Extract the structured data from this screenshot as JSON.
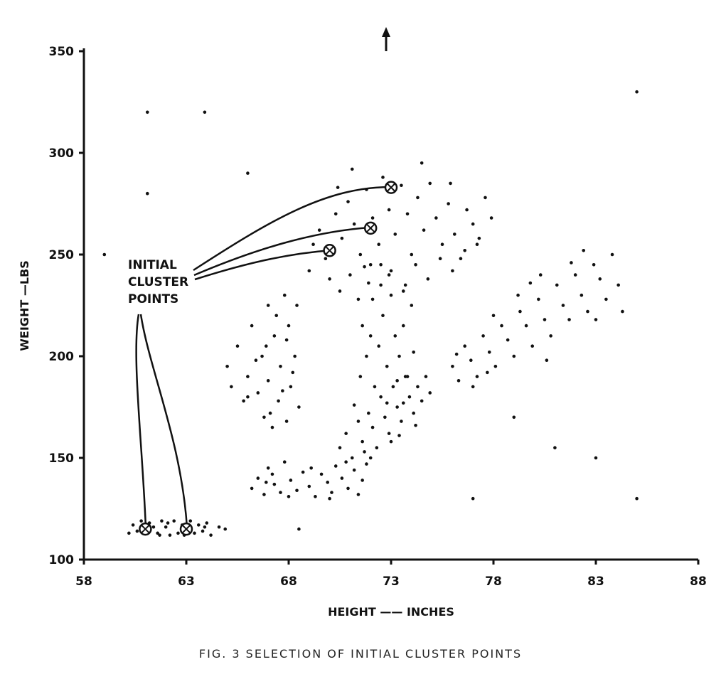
{
  "caption": "FIG. 3  SELECTION OF INITIAL CLUSTER POINTS",
  "annotation": [
    "INITIAL",
    "CLUSTER",
    "POINTS"
  ],
  "chart_data": {
    "type": "scatter",
    "title": "",
    "xlabel": "HEIGHT —— INCHES",
    "ylabel": "WEIGHT —LBS",
    "xlim": [
      58,
      88
    ],
    "ylim": [
      100,
      350
    ],
    "xticks": [
      58,
      63,
      68,
      73,
      78,
      83,
      88
    ],
    "yticks": [
      100,
      150,
      200,
      250,
      300,
      350
    ],
    "grid": false,
    "initial_cluster_points": [
      [
        61,
        115
      ],
      [
        63,
        115
      ],
      [
        70,
        252
      ],
      [
        72,
        263
      ],
      [
        73,
        283
      ]
    ],
    "offscale_marker_x": 73,
    "points": [
      [
        60.4,
        117
      ],
      [
        60.6,
        114
      ],
      [
        60.8,
        119
      ],
      [
        61.0,
        113
      ],
      [
        61.2,
        118
      ],
      [
        61.4,
        116
      ],
      [
        61.6,
        113
      ],
      [
        61.8,
        119
      ],
      [
        62.0,
        116
      ],
      [
        62.2,
        112
      ],
      [
        62.4,
        119
      ],
      [
        62.6,
        113
      ],
      [
        62.8,
        117
      ],
      [
        63.2,
        119
      ],
      [
        63.4,
        113
      ],
      [
        63.6,
        117
      ],
      [
        63.8,
        114
      ],
      [
        64.0,
        118
      ],
      [
        64.2,
        112
      ],
      [
        64.6,
        116
      ],
      [
        60.2,
        113
      ],
      [
        61.7,
        112
      ],
      [
        62.9,
        112
      ],
      [
        63.9,
        116
      ],
      [
        64.9,
        115
      ],
      [
        60.9,
        116
      ],
      [
        62.1,
        118
      ],
      [
        61.1,
        320
      ],
      [
        61.1,
        280
      ],
      [
        63.9,
        320
      ],
      [
        59.0,
        250
      ],
      [
        66.0,
        290
      ],
      [
        68.5,
        115
      ],
      [
        79.0,
        170
      ],
      [
        81.0,
        155
      ],
      [
        83.0,
        150
      ],
      [
        85.0,
        130
      ],
      [
        77.0,
        130
      ],
      [
        85.0,
        330
      ],
      [
        65.0,
        195
      ],
      [
        65.2,
        185
      ],
      [
        65.5,
        205
      ],
      [
        65.8,
        178
      ],
      [
        66.0,
        190
      ],
      [
        66.2,
        215
      ],
      [
        66.5,
        182
      ],
      [
        66.7,
        200
      ],
      [
        66.8,
        170
      ],
      [
        67.0,
        225
      ],
      [
        67.0,
        188
      ],
      [
        67.2,
        165
      ],
      [
        67.3,
        210
      ],
      [
        67.5,
        178
      ],
      [
        67.6,
        195
      ],
      [
        67.8,
        230
      ],
      [
        67.9,
        168
      ],
      [
        68.0,
        215
      ],
      [
        68.1,
        185
      ],
      [
        68.3,
        200
      ],
      [
        68.4,
        225
      ],
      [
        68.5,
        175
      ],
      [
        67.4,
        220
      ],
      [
        66.9,
        205
      ],
      [
        67.7,
        183
      ],
      [
        68.2,
        192
      ],
      [
        66.4,
        198
      ],
      [
        67.1,
        172
      ],
      [
        67.9,
        208
      ],
      [
        66.0,
        180
      ],
      [
        66.2,
        135
      ],
      [
        66.5,
        140
      ],
      [
        66.8,
        132
      ],
      [
        67.0,
        145
      ],
      [
        67.3,
        137
      ],
      [
        67.6,
        133
      ],
      [
        67.8,
        148
      ],
      [
        68.1,
        139
      ],
      [
        68.4,
        134
      ],
      [
        68.7,
        143
      ],
      [
        69.0,
        136
      ],
      [
        69.3,
        131
      ],
      [
        69.6,
        142
      ],
      [
        69.9,
        138
      ],
      [
        70.1,
        133
      ],
      [
        70.3,
        146
      ],
      [
        70.6,
        140
      ],
      [
        70.9,
        135
      ],
      [
        71.2,
        144
      ],
      [
        71.4,
        132
      ],
      [
        71.6,
        139
      ],
      [
        71.8,
        147
      ],
      [
        66.9,
        138
      ],
      [
        68.0,
        131
      ],
      [
        69.1,
        145
      ],
      [
        70.0,
        130
      ],
      [
        67.2,
        142
      ],
      [
        70.8,
        148
      ],
      [
        70.5,
        155
      ],
      [
        70.8,
        162
      ],
      [
        71.1,
        150
      ],
      [
        71.4,
        168
      ],
      [
        71.6,
        158
      ],
      [
        71.9,
        172
      ],
      [
        72.1,
        165
      ],
      [
        72.3,
        155
      ],
      [
        72.5,
        180
      ],
      [
        72.7,
        170
      ],
      [
        72.9,
        162
      ],
      [
        73.1,
        185
      ],
      [
        73.3,
        175
      ],
      [
        73.5,
        168
      ],
      [
        73.7,
        190
      ],
      [
        73.9,
        180
      ],
      [
        74.1,
        172
      ],
      [
        74.3,
        185
      ],
      [
        74.5,
        178
      ],
      [
        74.7,
        190
      ],
      [
        74.9,
        182
      ],
      [
        71.2,
        176
      ],
      [
        72.0,
        150
      ],
      [
        73.0,
        158
      ],
      [
        73.6,
        177
      ],
      [
        74.2,
        166
      ],
      [
        71.7,
        153
      ],
      [
        72.8,
        177
      ],
      [
        73.4,
        161
      ],
      [
        71.5,
        190
      ],
      [
        71.8,
        200
      ],
      [
        72.0,
        210
      ],
      [
        72.2,
        185
      ],
      [
        72.4,
        205
      ],
      [
        72.6,
        220
      ],
      [
        72.8,
        195
      ],
      [
        73.0,
        230
      ],
      [
        73.2,
        210
      ],
      [
        73.4,
        200
      ],
      [
        73.6,
        215
      ],
      [
        73.8,
        190
      ],
      [
        74.0,
        225
      ],
      [
        71.6,
        215
      ],
      [
        72.1,
        228
      ],
      [
        72.9,
        240
      ],
      [
        73.3,
        188
      ],
      [
        73.7,
        235
      ],
      [
        74.1,
        202
      ],
      [
        71.9,
        236
      ],
      [
        72.5,
        245
      ],
      [
        69.2,
        255
      ],
      [
        69.5,
        262
      ],
      [
        69.8,
        248
      ],
      [
        70.3,
        270
      ],
      [
        70.6,
        258
      ],
      [
        70.9,
        276
      ],
      [
        71.2,
        265
      ],
      [
        71.5,
        250
      ],
      [
        71.8,
        282
      ],
      [
        72.1,
        268
      ],
      [
        72.4,
        255
      ],
      [
        72.6,
        288
      ],
      [
        72.9,
        272
      ],
      [
        73.2,
        260
      ],
      [
        73.5,
        284
      ],
      [
        73.8,
        270
      ],
      [
        74.0,
        250
      ],
      [
        74.3,
        278
      ],
      [
        74.6,
        262
      ],
      [
        74.9,
        285
      ],
      [
        75.2,
        268
      ],
      [
        75.5,
        255
      ],
      [
        75.8,
        275
      ],
      [
        76.1,
        260
      ],
      [
        76.4,
        248
      ],
      [
        76.7,
        272
      ],
      [
        77.0,
        265
      ],
      [
        77.3,
        258
      ],
      [
        77.6,
        278
      ],
      [
        77.9,
        268
      ],
      [
        70.0,
        238
      ],
      [
        70.5,
        232
      ],
      [
        71.0,
        240
      ],
      [
        71.4,
        228
      ],
      [
        72.0,
        245
      ],
      [
        72.5,
        235
      ],
      [
        73.0,
        242
      ],
      [
        73.6,
        232
      ],
      [
        74.2,
        245
      ],
      [
        74.8,
        238
      ],
      [
        75.4,
        248
      ],
      [
        76.0,
        242
      ],
      [
        76.6,
        252
      ],
      [
        77.2,
        255
      ],
      [
        69.0,
        242
      ],
      [
        71.1,
        292
      ],
      [
        71.7,
        244
      ],
      [
        74.5,
        295
      ],
      [
        75.9,
        285
      ],
      [
        70.4,
        283
      ],
      [
        76.0,
        195
      ],
      [
        76.3,
        188
      ],
      [
        76.6,
        205
      ],
      [
        76.9,
        198
      ],
      [
        77.2,
        190
      ],
      [
        77.5,
        210
      ],
      [
        77.8,
        202
      ],
      [
        78.1,
        195
      ],
      [
        78.4,
        215
      ],
      [
        78.7,
        208
      ],
      [
        79.0,
        200
      ],
      [
        79.3,
        222
      ],
      [
        79.6,
        215
      ],
      [
        79.9,
        205
      ],
      [
        80.2,
        228
      ],
      [
        80.5,
        218
      ],
      [
        80.8,
        210
      ],
      [
        81.1,
        235
      ],
      [
        81.4,
        225
      ],
      [
        81.7,
        218
      ],
      [
        82.0,
        240
      ],
      [
        82.3,
        230
      ],
      [
        82.6,
        222
      ],
      [
        82.9,
        245
      ],
      [
        83.2,
        238
      ],
      [
        83.5,
        228
      ],
      [
        83.8,
        250
      ],
      [
        84.1,
        235
      ],
      [
        76.2,
        201
      ],
      [
        77.0,
        185
      ],
      [
        78.0,
        220
      ],
      [
        79.2,
        230
      ],
      [
        80.6,
        198
      ],
      [
        81.8,
        246
      ],
      [
        83.0,
        218
      ],
      [
        84.3,
        222
      ],
      [
        77.7,
        192
      ],
      [
        79.8,
        236
      ],
      [
        82.4,
        252
      ],
      [
        80.3,
        240
      ]
    ]
  }
}
